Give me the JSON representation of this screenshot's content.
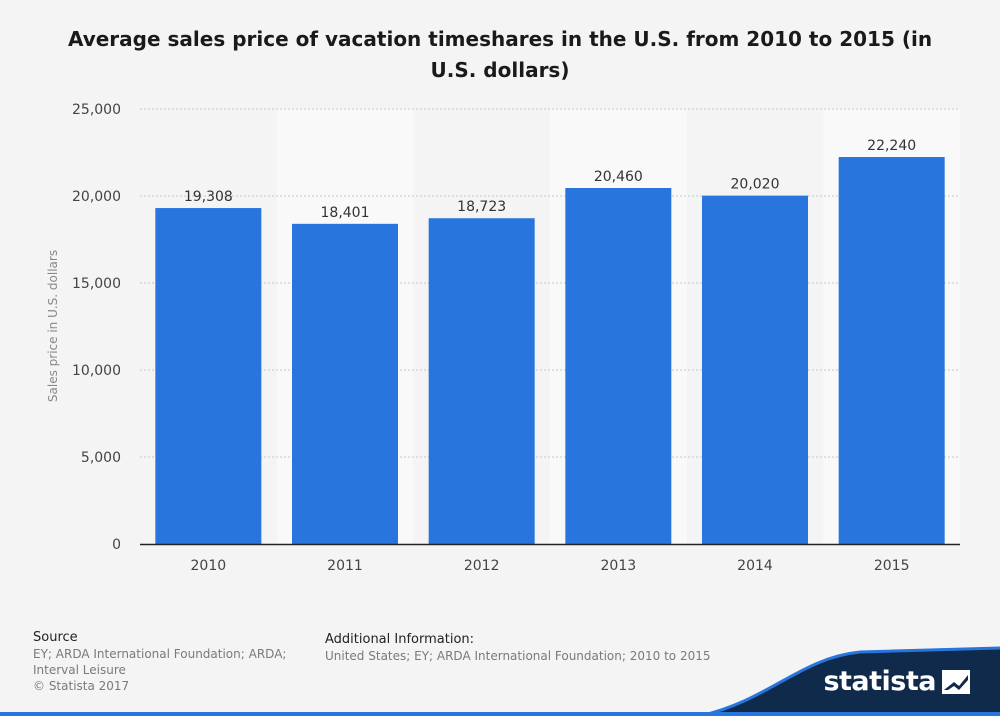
{
  "chart_data": {
    "type": "bar",
    "title": "Average sales price of vacation timeshares in the U.S. from 2010 to 2015 (in U.S. dollars)",
    "categories": [
      "2010",
      "2011",
      "2012",
      "2013",
      "2014",
      "2015"
    ],
    "values": [
      19308,
      18401,
      18723,
      20460,
      20020,
      22240
    ],
    "value_labels": [
      "19,308",
      "18,401",
      "18,723",
      "20,460",
      "20,020",
      "22,240"
    ],
    "xlabel": "",
    "ylabel": "Sales price in U.S. dollars",
    "ylim": [
      0,
      25000
    ],
    "yticks": [
      0,
      5000,
      10000,
      15000,
      20000,
      25000
    ],
    "ytick_labels": [
      "0",
      "5,000",
      "10,000",
      "15,000",
      "20,000",
      "25,000"
    ],
    "grid": true,
    "legend": "none",
    "colors": {
      "bar": "#2876dd",
      "band": "#f9f9f9",
      "grid": "#c8c8c8"
    }
  },
  "footer": {
    "source_heading": "Source",
    "source_line1": "EY; ARDA International Foundation; ARDA;",
    "source_line2": "Interval Leisure",
    "copyright": "© Statista 2017",
    "info_heading": "Additional Information:",
    "info_text": "United States; EY; ARDA International Foundation; 2010 to 2015"
  },
  "brand": {
    "name": "statista",
    "logo_icon": "statista-logo-icon",
    "color": "#0f2a4a",
    "accent": "#2876dd"
  }
}
